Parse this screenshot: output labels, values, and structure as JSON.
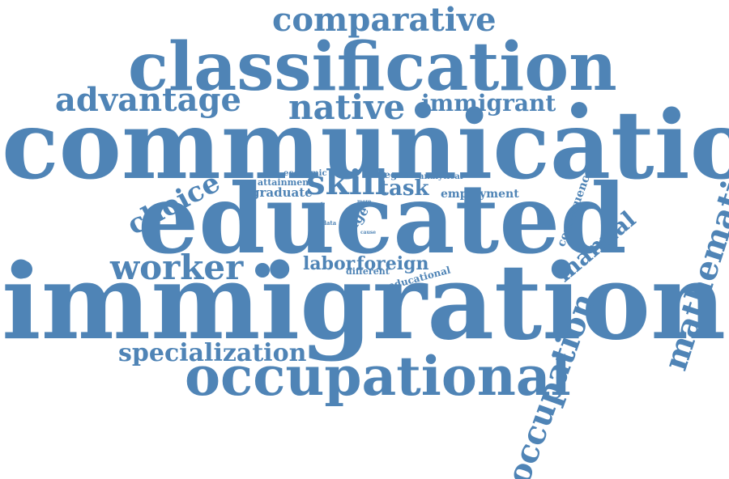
{
  "colors": {
    "word": "#4f84b6",
    "background": "#ffffff"
  },
  "words": [
    {
      "key": "comparative",
      "text": "comparative"
    },
    {
      "key": "classification",
      "text": "classification"
    },
    {
      "key": "advantage",
      "text": "advantage"
    },
    {
      "key": "native",
      "text": "native"
    },
    {
      "key": "immigrant",
      "text": "immigrant"
    },
    {
      "key": "communication",
      "text": "communication"
    },
    {
      "key": "choice",
      "text": "choice"
    },
    {
      "key": "skill",
      "text": "skill"
    },
    {
      "key": "task",
      "text": "task"
    },
    {
      "key": "economic",
      "text": "economic"
    },
    {
      "key": "attainment",
      "text": "attainment"
    },
    {
      "key": "graduate",
      "text": "graduate"
    },
    {
      "key": "degree",
      "text": "degree"
    },
    {
      "key": "analytical",
      "text": "analytical"
    },
    {
      "key": "employment",
      "text": "employment"
    },
    {
      "key": "more",
      "text": "more"
    },
    {
      "key": "content",
      "text": "content"
    },
    {
      "key": "data",
      "text": "data"
    },
    {
      "key": "wage",
      "text": "wage"
    },
    {
      "key": "cause",
      "text": "cause"
    },
    {
      "key": "educated",
      "text": "educated"
    },
    {
      "key": "consequence",
      "text": "consequence"
    },
    {
      "key": "manual",
      "text": "manual"
    },
    {
      "key": "mathematical",
      "text": "mathematical"
    },
    {
      "key": "worker",
      "text": "worker"
    },
    {
      "key": "labor",
      "text": "labor"
    },
    {
      "key": "foreign",
      "text": "foreign"
    },
    {
      "key": "different",
      "text": "different"
    },
    {
      "key": "educational",
      "text": "educational"
    },
    {
      "key": "immigration",
      "text": "immigration"
    },
    {
      "key": "specialization",
      "text": "specialization"
    },
    {
      "key": "occupational",
      "text": "occupational"
    },
    {
      "key": "occupation",
      "text": "occupation"
    }
  ]
}
